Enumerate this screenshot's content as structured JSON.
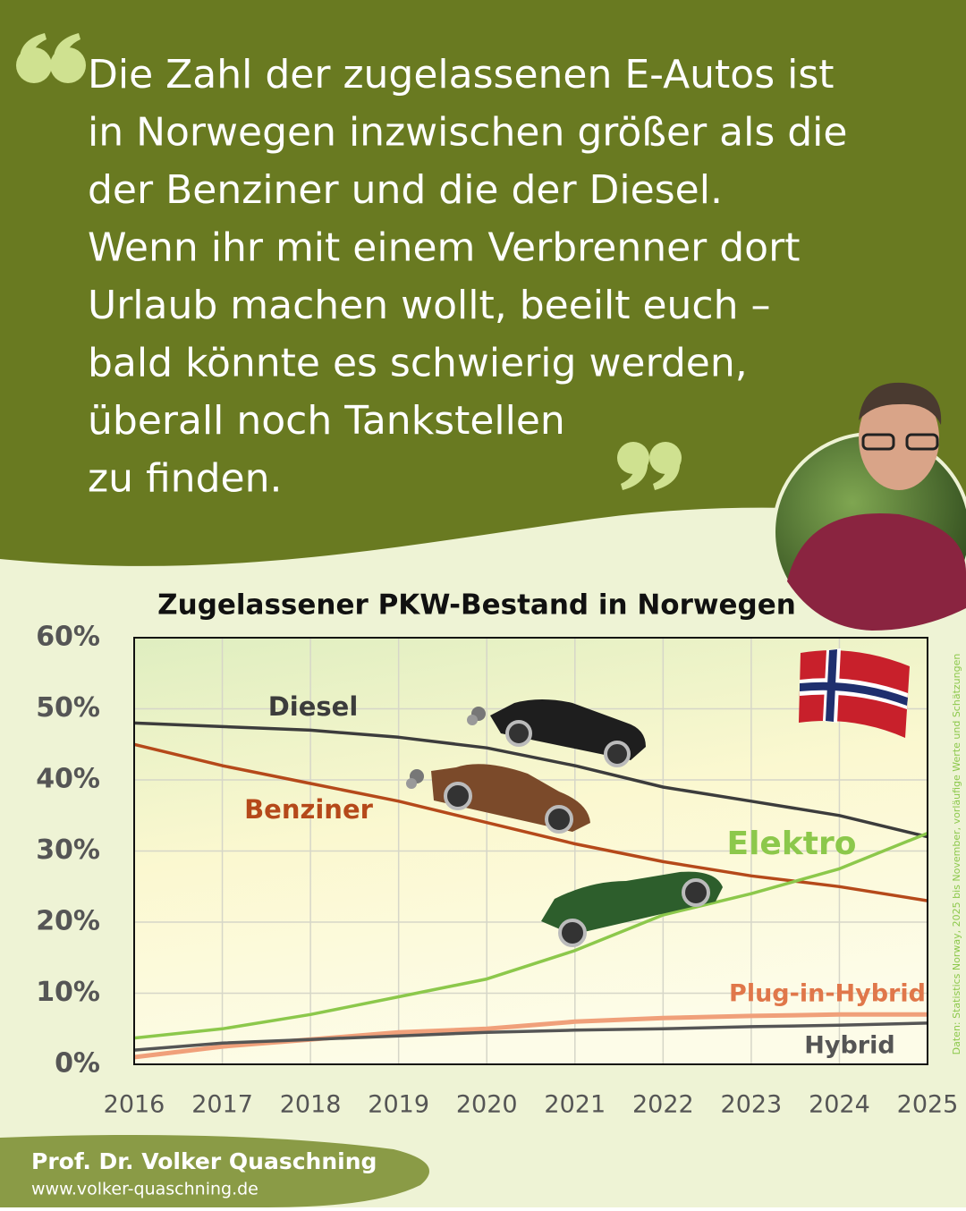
{
  "quote": {
    "lines": [
      "Die Zahl der zugelassenen E-Autos ist",
      "in Norwegen inzwischen größer als die",
      "der Benziner und die der Diesel.",
      "Wenn ihr mit einem Verbrenner dort",
      "Urlaub machen wollt, beeilt euch –",
      "bald könnte es schwierig werden,",
      "überall noch Tankstellen",
      "zu finden."
    ]
  },
  "chart_data": {
    "type": "line",
    "title": "Zugelassener PKW-Bestand in Norwegen",
    "x": [
      2016,
      2017,
      2018,
      2019,
      2020,
      2021,
      2022,
      2023,
      2024,
      2025
    ],
    "xlim": [
      2016,
      2025
    ],
    "xticks": [
      2016,
      2017,
      2018,
      2019,
      2020,
      2021,
      2022,
      2023,
      2024,
      2025
    ],
    "ylim": [
      0,
      60
    ],
    "yticks": [
      {
        "value": 0,
        "label": "0%"
      },
      {
        "value": 10,
        "label": "10%"
      },
      {
        "value": 20,
        "label": "20%"
      },
      {
        "value": 30,
        "label": "30%"
      },
      {
        "value": 40,
        "label": "40%"
      },
      {
        "value": 50,
        "label": "50%"
      },
      {
        "value": 60,
        "label": "60%"
      }
    ],
    "grid": true,
    "series": [
      {
        "name": "Diesel",
        "color": "#3c3c3c",
        "values": [
          48,
          47.5,
          47,
          46,
          44.5,
          42,
          39,
          37,
          35,
          32
        ]
      },
      {
        "name": "Benziner",
        "color": "#b5491a",
        "values": [
          45,
          42,
          39.5,
          37,
          34,
          31,
          28.5,
          26.5,
          25,
          23
        ]
      },
      {
        "name": "Elektro",
        "color": "#8cc84b",
        "values": [
          3.7,
          5,
          7,
          9.5,
          12,
          16,
          21,
          24,
          27.5,
          32.5
        ]
      },
      {
        "name": "Plug-in-Hybrid",
        "color": "#f0a07a",
        "values": [
          1,
          2.5,
          3.5,
          4.5,
          5,
          6,
          6.5,
          6.8,
          7,
          7
        ]
      },
      {
        "name": "Hybrid",
        "color": "#555555",
        "values": [
          2,
          3,
          3.5,
          4,
          4.5,
          4.8,
          5,
          5.3,
          5.5,
          5.8
        ]
      }
    ]
  },
  "source_note": "Daten: Statistics Norway, 2025 bis November, vorläufige Werte und Schätzungen",
  "author": {
    "name": "Prof. Dr. Volker Quaschning",
    "website": "www.volker-quaschning.de"
  }
}
